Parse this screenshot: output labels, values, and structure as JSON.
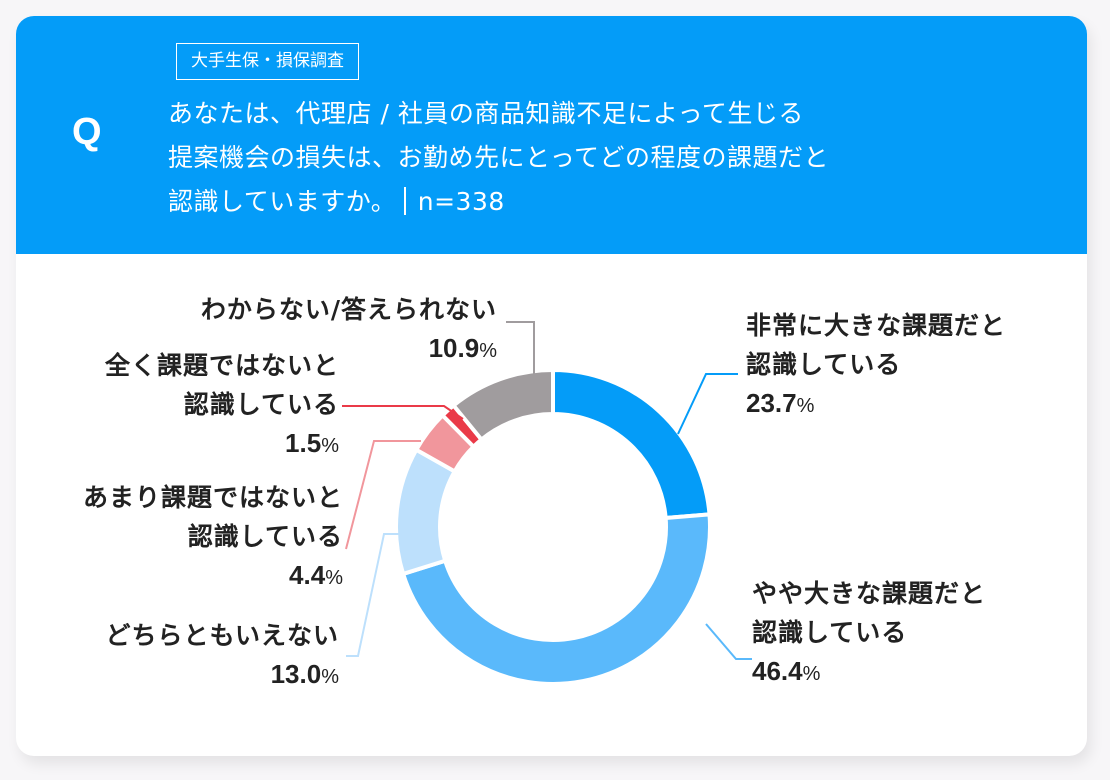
{
  "header": {
    "q_mark": "Q",
    "tag": "大手生保・損保調査",
    "question_lines": [
      "あなたは、代理店 / 社員の商品知識不足によって生じる",
      "提案機会の損失は、お勤め先にとってどの程度の課題だと",
      "認識していますか。"
    ],
    "sample_size": "n=338",
    "bg_color": "#049cf8"
  },
  "chart_data": {
    "type": "pie",
    "variant": "donut",
    "title": "あなたは、代理店 / 社員の商品知識不足によって生じる提案機会の損失は、お勤め先にとってどの程度の課題だと認識していますか。",
    "n": 338,
    "start_angle": "12 o'clock, clockwise",
    "categories": [
      "非常に大きな課題だと認識している",
      "やや大きな課題だと認識している",
      "どちらともいえない",
      "あまり課題ではないと認識している",
      "全く課題ではないと認識している",
      "わからない/答えられない"
    ],
    "values": [
      23.7,
      46.4,
      13.0,
      4.4,
      1.5,
      10.9
    ],
    "colors": [
      "#049cf8",
      "#5ab9fb",
      "#bde0fc",
      "#f1969c",
      "#ea3a48",
      "#a09c9e"
    ],
    "unit": "%"
  },
  "labels": [
    {
      "line1": "非常に大きな課題だと",
      "line2": "認識している",
      "value": "23.7",
      "unit": "%"
    },
    {
      "line1": "やや大きな課題だと",
      "line2": "認識している",
      "value": "46.4",
      "unit": "%"
    },
    {
      "line1": "どちらともいえない",
      "value": "13.0",
      "unit": "%"
    },
    {
      "line1": "あまり課題ではないと",
      "line2": "認識している",
      "value": "4.4",
      "unit": "%"
    },
    {
      "line1": "全く課題ではないと",
      "line2": "認識している",
      "value": "1.5",
      "unit": "%"
    },
    {
      "line1": "わからない/答えられない",
      "value": "10.9",
      "unit": "%"
    }
  ]
}
